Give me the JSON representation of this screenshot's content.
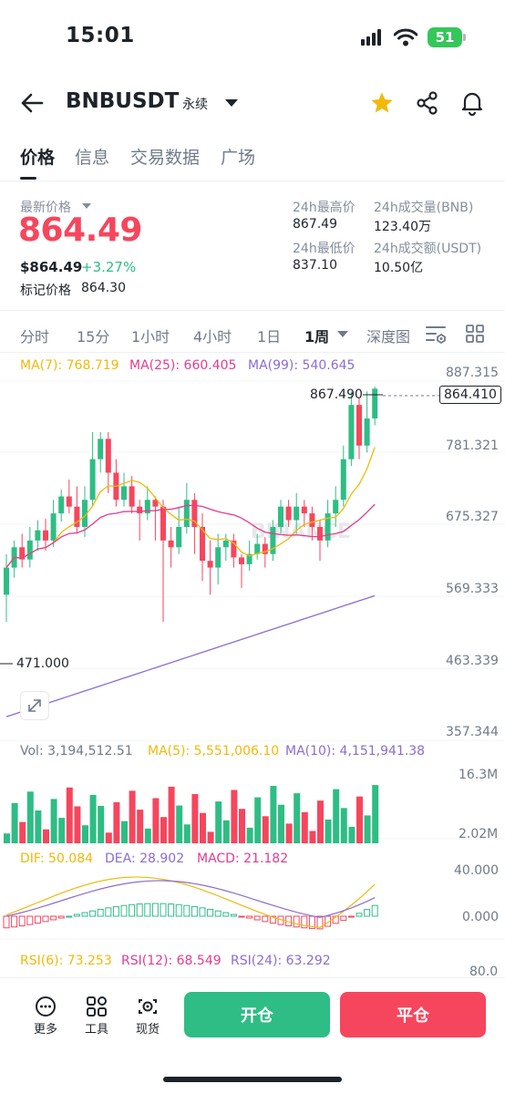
{
  "status_bar": {
    "time": "15:01",
    "battery": "51"
  },
  "header": {
    "symbol": "BNBUSDT",
    "contract_type": "永续"
  },
  "tabs": [
    "价格",
    "信息",
    "交易数据",
    "广场"
  ],
  "ticker": {
    "last_price_label": "最新价格",
    "last_price": "864.49",
    "usd_price": "$864.49",
    "change_pct": "+3.27%",
    "mark_price_label": "标记价格",
    "mark_price": "864.30",
    "high_label": "24h最高价",
    "high": "867.49",
    "volume_label": "24h成交量(BNB)",
    "volume": "123.40万",
    "low_label": "24h最低价",
    "low": "837.10",
    "turnover_label": "24h成交额(USDT)",
    "turnover": "10.50亿"
  },
  "timeframes": [
    "分时",
    "15分",
    "1小时",
    "4小时",
    "1日",
    "1周",
    "深度图"
  ],
  "active_timeframe": "1周",
  "main_chart": {
    "ma7": "MA(7): 768.719",
    "ma25": "MA(25): 660.405",
    "ma99": "MA(99): 540.645",
    "y_ticks": [
      "887.315",
      "781.321",
      "675.327",
      "569.333",
      "463.339",
      "357.344"
    ],
    "high_marker": "867.490",
    "low_marker": "471.000",
    "current_price_tag": "864.410",
    "watermark": "BINANCE"
  },
  "volume_chart": {
    "vol": "Vol: 3,194,512.51",
    "ma5": "MA(5): 5,551,006.10",
    "ma10": "MA(10): 4,151,941.38",
    "y_ticks": [
      "16.3M",
      "2.02M"
    ]
  },
  "macd_chart": {
    "dif": "DIF: 50.084",
    "dea": "DEA: 28.902",
    "macd": "MACD: 21.182",
    "y_ticks": [
      "40.000",
      "0.000"
    ]
  },
  "rsi_chart": {
    "rsi6": "RSI(6): 73.253",
    "rsi12": "RSI(12): 68.549",
    "rsi24": "RSI(24): 63.292",
    "y_tick": "80.0"
  },
  "bottom_bar": {
    "more": "更多",
    "tools": "工具",
    "spot": "现货",
    "open": "开仓",
    "close": "平仓"
  },
  "colors": {
    "up": "#2ebd85",
    "down": "#f6465d",
    "ma7": "#f0b90b",
    "ma25": "#e33b8f",
    "ma99": "#8c6cd1",
    "star": "#f0b90b"
  }
}
